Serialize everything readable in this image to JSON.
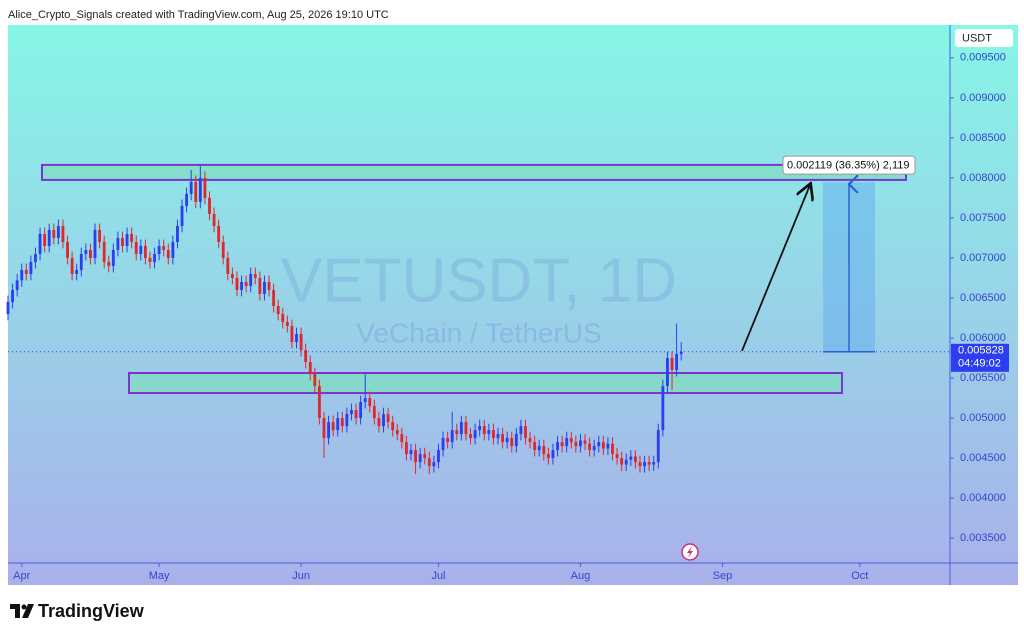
{
  "header": "Alice_Crypto_Signals created with TradingView.com, Aug 25, 2026 19:10 UTC",
  "footer_brand": "TradingView",
  "chart_data": {
    "type": "candlestick",
    "watermark_title": "VETUSDT, 1D",
    "watermark_subtitle": "VeChain / TetherUS",
    "currency": "USDT",
    "colors": {
      "up": "#2b3ef0",
      "down": "#e2262c"
    },
    "ylim": [
      0.00319,
      0.00991
    ],
    "yticks": [
      {
        "value": 0.0035,
        "label": "0.003500"
      },
      {
        "value": 0.004,
        "label": "0.004000"
      },
      {
        "value": 0.0045,
        "label": "0.004500"
      },
      {
        "value": 0.005,
        "label": "0.005000"
      },
      {
        "value": 0.0055,
        "label": "0.005500"
      },
      {
        "value": 0.006,
        "label": "0.006000"
      },
      {
        "value": 0.0065,
        "label": "0.006500"
      },
      {
        "value": 0.007,
        "label": "0.007000"
      },
      {
        "value": 0.0075,
        "label": "0.007500"
      },
      {
        "value": 0.008,
        "label": "0.008000"
      },
      {
        "value": 0.0085,
        "label": "0.008500"
      },
      {
        "value": 0.009,
        "label": "0.009000"
      },
      {
        "value": 0.0095,
        "label": "0.009500"
      }
    ],
    "xlim": [
      0,
      205.7
    ],
    "xticks": [
      {
        "value": 3,
        "label": "Apr"
      },
      {
        "value": 33,
        "label": "May"
      },
      {
        "value": 64,
        "label": "Jun"
      },
      {
        "value": 94,
        "label": "Jul"
      },
      {
        "value": 125,
        "label": "Aug"
      },
      {
        "value": 156,
        "label": "Sep"
      },
      {
        "value": 186,
        "label": "Oct"
      }
    ],
    "last_price": 0.005828,
    "countdown": "04:49:02",
    "zones": [
      {
        "from": 0.007975,
        "to": 0.0081625
      },
      {
        "from": 0.005313,
        "to": 0.005563
      }
    ],
    "measure": {
      "from": 0.005828,
      "to": 0.007947,
      "label": "0.002119 (36.35%) 2,119"
    },
    "ohlc": [
      [
        0.0063,
        0.00653,
        0.00622,
        0.00645
      ],
      [
        0.00645,
        0.00668,
        0.00637,
        0.0066
      ],
      [
        0.0066,
        0.0068,
        0.00652,
        0.00672
      ],
      [
        0.00672,
        0.00693,
        0.00664,
        0.00685
      ],
      [
        0.00685,
        0.00693,
        0.00672,
        0.0068
      ],
      [
        0.0068,
        0.00703,
        0.00672,
        0.00695
      ],
      [
        0.00695,
        0.00713,
        0.00687,
        0.00705
      ],
      [
        0.00705,
        0.00738,
        0.00697,
        0.0073
      ],
      [
        0.0073,
        0.00738,
        0.00707,
        0.00715
      ],
      [
        0.00715,
        0.00743,
        0.00707,
        0.00735
      ],
      [
        0.00735,
        0.00743,
        0.00717,
        0.00725
      ],
      [
        0.00725,
        0.00748,
        0.00717,
        0.0074
      ],
      [
        0.0074,
        0.00748,
        0.00712,
        0.0072
      ],
      [
        0.0072,
        0.00728,
        0.00692,
        0.007
      ],
      [
        0.007,
        0.00708,
        0.00672,
        0.0068
      ],
      [
        0.0068,
        0.00693,
        0.00672,
        0.00685
      ],
      [
        0.00685,
        0.00713,
        0.00677,
        0.00705
      ],
      [
        0.00705,
        0.00718,
        0.00697,
        0.0071
      ],
      [
        0.0071,
        0.00718,
        0.00692,
        0.007
      ],
      [
        0.007,
        0.00743,
        0.00692,
        0.00735
      ],
      [
        0.00735,
        0.00743,
        0.00712,
        0.0072
      ],
      [
        0.0072,
        0.00728,
        0.00687,
        0.00695
      ],
      [
        0.00695,
        0.00703,
        0.00682,
        0.0069
      ],
      [
        0.0069,
        0.00718,
        0.00682,
        0.0071
      ],
      [
        0.0071,
        0.00733,
        0.00702,
        0.00725
      ],
      [
        0.00725,
        0.00733,
        0.00707,
        0.00715
      ],
      [
        0.00715,
        0.00738,
        0.00707,
        0.0073
      ],
      [
        0.0073,
        0.00738,
        0.00712,
        0.0072
      ],
      [
        0.0072,
        0.00728,
        0.00697,
        0.00705
      ],
      [
        0.00705,
        0.00723,
        0.00697,
        0.00715
      ],
      [
        0.00715,
        0.00723,
        0.00692,
        0.007
      ],
      [
        0.007,
        0.00708,
        0.00687,
        0.00695
      ],
      [
        0.00695,
        0.00713,
        0.00687,
        0.00705
      ],
      [
        0.00705,
        0.00723,
        0.00697,
        0.00715
      ],
      [
        0.00715,
        0.00723,
        0.00702,
        0.0071
      ],
      [
        0.0071,
        0.00718,
        0.00692,
        0.007
      ],
      [
        0.007,
        0.00728,
        0.00692,
        0.0072
      ],
      [
        0.0072,
        0.00748,
        0.00712,
        0.0074
      ],
      [
        0.0074,
        0.00773,
        0.00732,
        0.00765
      ],
      [
        0.00765,
        0.00788,
        0.00757,
        0.0078
      ],
      [
        0.0078,
        0.0081,
        0.00772,
        0.00795
      ],
      [
        0.00795,
        0.00803,
        0.00762,
        0.0077
      ],
      [
        0.0077,
        0.00815,
        0.00762,
        0.008
      ],
      [
        0.008,
        0.00808,
        0.00767,
        0.00775
      ],
      [
        0.00775,
        0.00783,
        0.00747,
        0.00755
      ],
      [
        0.00755,
        0.00763,
        0.00732,
        0.0074
      ],
      [
        0.0074,
        0.00748,
        0.00712,
        0.0072
      ],
      [
        0.0072,
        0.00728,
        0.00692,
        0.007
      ],
      [
        0.007,
        0.00708,
        0.00672,
        0.0068
      ],
      [
        0.0068,
        0.00688,
        0.00667,
        0.00675
      ],
      [
        0.00675,
        0.00683,
        0.00652,
        0.0066
      ],
      [
        0.0066,
        0.00678,
        0.00652,
        0.0067
      ],
      [
        0.0067,
        0.00678,
        0.00657,
        0.00665
      ],
      [
        0.00665,
        0.00688,
        0.00657,
        0.0068
      ],
      [
        0.0068,
        0.00688,
        0.00667,
        0.00675
      ],
      [
        0.00675,
        0.00683,
        0.00647,
        0.00655
      ],
      [
        0.00655,
        0.00678,
        0.00647,
        0.0067
      ],
      [
        0.0067,
        0.00678,
        0.00652,
        0.0066
      ],
      [
        0.0066,
        0.00668,
        0.00632,
        0.0064
      ],
      [
        0.0064,
        0.00648,
        0.00622,
        0.0063
      ],
      [
        0.0063,
        0.00638,
        0.00612,
        0.0062
      ],
      [
        0.0062,
        0.00628,
        0.00607,
        0.00615
      ],
      [
        0.00615,
        0.00623,
        0.00587,
        0.00595
      ],
      [
        0.00595,
        0.00613,
        0.00587,
        0.00605
      ],
      [
        0.00605,
        0.00613,
        0.00577,
        0.00585
      ],
      [
        0.00585,
        0.00593,
        0.00562,
        0.0057
      ],
      [
        0.0057,
        0.00578,
        0.00547,
        0.00555
      ],
      [
        0.00555,
        0.00563,
        0.00532,
        0.0054
      ],
      [
        0.0054,
        0.00548,
        0.00492,
        0.005
      ],
      [
        0.005,
        0.00508,
        0.0045,
        0.00475
      ],
      [
        0.00475,
        0.00503,
        0.00467,
        0.00495
      ],
      [
        0.00495,
        0.00503,
        0.00477,
        0.00485
      ],
      [
        0.00485,
        0.00508,
        0.00477,
        0.005
      ],
      [
        0.005,
        0.00508,
        0.00482,
        0.0049
      ],
      [
        0.0049,
        0.00513,
        0.00482,
        0.00505
      ],
      [
        0.00505,
        0.00518,
        0.00497,
        0.0051
      ],
      [
        0.0051,
        0.00518,
        0.00492,
        0.005
      ],
      [
        0.005,
        0.00528,
        0.00492,
        0.0052
      ],
      [
        0.0052,
        0.00555,
        0.00512,
        0.00525
      ],
      [
        0.00525,
        0.00533,
        0.00507,
        0.00515
      ],
      [
        0.00515,
        0.00523,
        0.00492,
        0.005
      ],
      [
        0.005,
        0.00508,
        0.00482,
        0.0049
      ],
      [
        0.0049,
        0.00513,
        0.00482,
        0.00505
      ],
      [
        0.00505,
        0.00513,
        0.00487,
        0.00495
      ],
      [
        0.00495,
        0.00503,
        0.00477,
        0.00485
      ],
      [
        0.00485,
        0.00493,
        0.00472,
        0.0048
      ],
      [
        0.0048,
        0.00488,
        0.00462,
        0.0047
      ],
      [
        0.0047,
        0.00478,
        0.00447,
        0.00455
      ],
      [
        0.00455,
        0.00468,
        0.00447,
        0.0046
      ],
      [
        0.0046,
        0.00468,
        0.0043,
        0.00445
      ],
      [
        0.00445,
        0.00463,
        0.00437,
        0.00455
      ],
      [
        0.00455,
        0.00463,
        0.00442,
        0.0045
      ],
      [
        0.0045,
        0.00458,
        0.0043,
        0.0044
      ],
      [
        0.0044,
        0.00453,
        0.00432,
        0.00445
      ],
      [
        0.00445,
        0.00468,
        0.00437,
        0.0046
      ],
      [
        0.0046,
        0.00483,
        0.00452,
        0.00475
      ],
      [
        0.00475,
        0.00483,
        0.00462,
        0.0047
      ],
      [
        0.0047,
        0.00508,
        0.00462,
        0.00485
      ],
      [
        0.00485,
        0.00493,
        0.00472,
        0.0048
      ],
      [
        0.0048,
        0.00503,
        0.00472,
        0.00495
      ],
      [
        0.00495,
        0.00503,
        0.00472,
        0.0048
      ],
      [
        0.0048,
        0.00488,
        0.00467,
        0.00475
      ],
      [
        0.00475,
        0.00493,
        0.00467,
        0.00485
      ],
      [
        0.00485,
        0.00498,
        0.00477,
        0.0049
      ],
      [
        0.0049,
        0.00498,
        0.00472,
        0.0048
      ],
      [
        0.0048,
        0.00493,
        0.00472,
        0.00485
      ],
      [
        0.00485,
        0.00493,
        0.00467,
        0.00475
      ],
      [
        0.00475,
        0.00488,
        0.00467,
        0.0048
      ],
      [
        0.0048,
        0.00488,
        0.00462,
        0.0047
      ],
      [
        0.0047,
        0.00483,
        0.00462,
        0.00475
      ],
      [
        0.00475,
        0.00483,
        0.00457,
        0.00465
      ],
      [
        0.00465,
        0.00488,
        0.00457,
        0.0048
      ],
      [
        0.0048,
        0.00498,
        0.00472,
        0.0049
      ],
      [
        0.0049,
        0.00498,
        0.00467,
        0.00475
      ],
      [
        0.00475,
        0.00483,
        0.00462,
        0.0047
      ],
      [
        0.0047,
        0.00478,
        0.00452,
        0.0046
      ],
      [
        0.0046,
        0.00473,
        0.00452,
        0.00465
      ],
      [
        0.00465,
        0.00473,
        0.00447,
        0.00455
      ],
      [
        0.00455,
        0.00463,
        0.00442,
        0.0045
      ],
      [
        0.0045,
        0.00468,
        0.00442,
        0.0046
      ],
      [
        0.0046,
        0.00478,
        0.00452,
        0.0047
      ],
      [
        0.0047,
        0.00478,
        0.00457,
        0.00465
      ],
      [
        0.00465,
        0.00483,
        0.00457,
        0.00475
      ],
      [
        0.00475,
        0.00483,
        0.00462,
        0.0047
      ],
      [
        0.0047,
        0.00478,
        0.00457,
        0.00465
      ],
      [
        0.00465,
        0.0048,
        0.00457,
        0.00472
      ],
      [
        0.00472,
        0.0048,
        0.0046,
        0.00468
      ],
      [
        0.00468,
        0.00476,
        0.00452,
        0.0046
      ],
      [
        0.0046,
        0.00473,
        0.00452,
        0.00465
      ],
      [
        0.00465,
        0.00478,
        0.00457,
        0.0047
      ],
      [
        0.0047,
        0.00478,
        0.00454,
        0.00462
      ],
      [
        0.00462,
        0.00476,
        0.00454,
        0.00468
      ],
      [
        0.00468,
        0.00476,
        0.00447,
        0.00455
      ],
      [
        0.00455,
        0.00463,
        0.00442,
        0.0045
      ],
      [
        0.0045,
        0.00458,
        0.00434,
        0.00442
      ],
      [
        0.00442,
        0.00456,
        0.00434,
        0.00448
      ],
      [
        0.00448,
        0.0046,
        0.0044,
        0.00452
      ],
      [
        0.00452,
        0.0046,
        0.00437,
        0.00445
      ],
      [
        0.00445,
        0.00453,
        0.00432,
        0.0044
      ],
      [
        0.0044,
        0.00453,
        0.00432,
        0.00445
      ],
      [
        0.00445,
        0.00453,
        0.00434,
        0.00442
      ],
      [
        0.00442,
        0.00453,
        0.00434,
        0.00445
      ],
      [
        0.00445,
        0.00493,
        0.00437,
        0.00485
      ],
      [
        0.00485,
        0.00548,
        0.00477,
        0.0054
      ],
      [
        0.0054,
        0.00583,
        0.00532,
        0.00575
      ],
      [
        0.00575,
        0.00583,
        0.00535,
        0.0056
      ],
      [
        0.0056,
        0.00618,
        0.00552,
        0.0058
      ],
      [
        0.0058,
        0.00595,
        0.00572,
        0.005828
      ]
    ]
  }
}
